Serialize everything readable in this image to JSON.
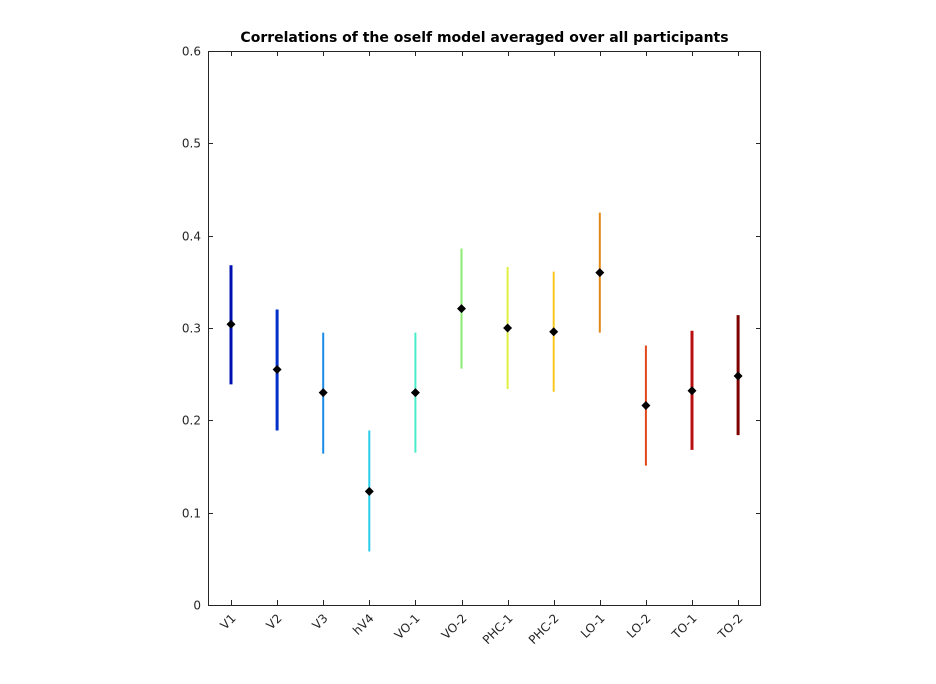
{
  "chart_data": {
    "type": "scatter",
    "title": "Correlations of the oself model averaged over all participants",
    "xlabel": "",
    "ylabel": "",
    "categories": [
      "V1",
      "V2",
      "V3",
      "hV4",
      "VO-1",
      "VO-2",
      "PHC-1",
      "PHC-2",
      "LO-1",
      "LO-2",
      "TO-1",
      "TO-2"
    ],
    "values": [
      0.304,
      0.255,
      0.23,
      0.123,
      0.23,
      0.321,
      0.3,
      0.296,
      0.36,
      0.216,
      0.232,
      0.248
    ],
    "err_low": [
      0.239,
      0.189,
      0.164,
      0.058,
      0.165,
      0.256,
      0.234,
      0.231,
      0.295,
      0.151,
      0.168,
      0.184
    ],
    "err_high": [
      0.368,
      0.32,
      0.295,
      0.189,
      0.295,
      0.386,
      0.366,
      0.361,
      0.425,
      0.281,
      0.297,
      0.314
    ],
    "colors": [
      "#0010b0",
      "#0030c8",
      "#1a8ce8",
      "#28cce8",
      "#48ecc8",
      "#88ec70",
      "#e0f040",
      "#f8c820",
      "#e08818",
      "#e04818",
      "#b81010",
      "#800000"
    ],
    "ylim": [
      0,
      0.6
    ],
    "yticks": [
      "0",
      "0.1",
      "0.2",
      "0.3",
      "0.4",
      "0.5",
      "0.6"
    ],
    "grid": false,
    "legend": "none"
  }
}
